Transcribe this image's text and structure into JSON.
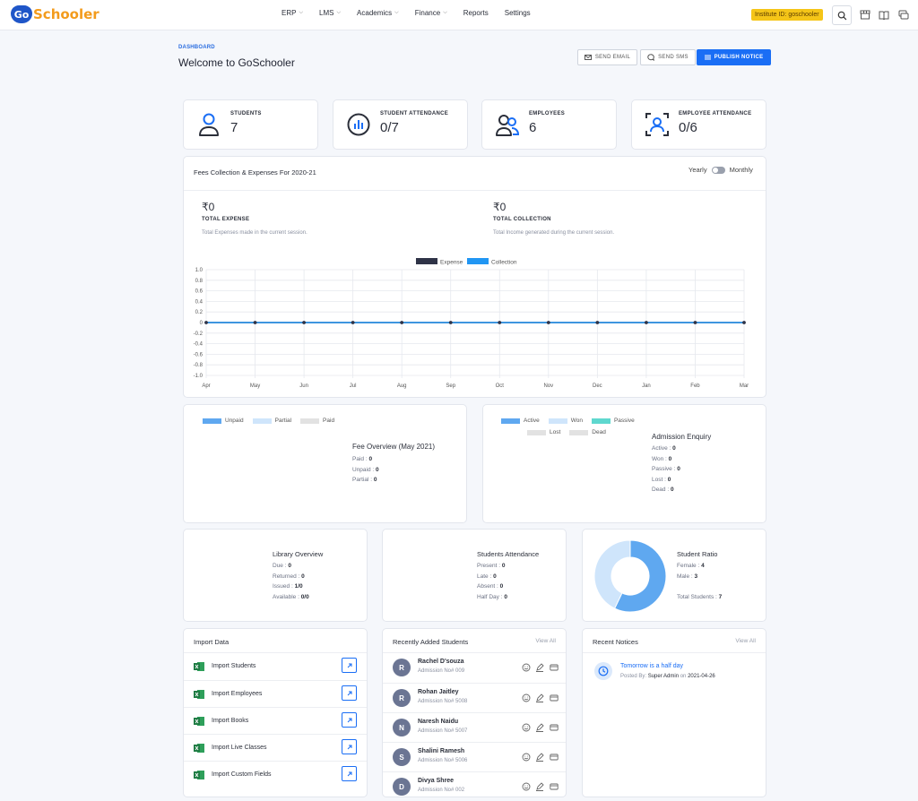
{
  "app": {
    "logo_badge": "Go",
    "logo_text": "Schooler"
  },
  "nav": {
    "items": [
      {
        "label": "ERP",
        "dropdown": true
      },
      {
        "label": "LMS",
        "dropdown": true
      },
      {
        "label": "Academics",
        "dropdown": true
      },
      {
        "label": "Finance",
        "dropdown": true
      },
      {
        "label": "Reports",
        "dropdown": false
      },
      {
        "label": "Settings",
        "dropdown": false
      }
    ]
  },
  "header": {
    "institute_id": "Institute ID: goschooler"
  },
  "page": {
    "breadcrumb": "DASHBOARD",
    "title": "Welcome to GoSchooler",
    "send_email": "SEND EMAIL",
    "send_sms": "SEND SMS",
    "publish_notice": "PUBLISH NOTICE"
  },
  "stats": [
    {
      "label": "STUDENTS",
      "value": "7",
      "icon": "student-icon"
    },
    {
      "label": "STUDENT ATTENDANCE",
      "value": "0/7",
      "icon": "attendance-chart-icon"
    },
    {
      "label": "EMPLOYEES",
      "value": "6",
      "icon": "employees-icon"
    },
    {
      "label": "EMPLOYEE ATTENDANCE",
      "value": "0/6",
      "icon": "face-scan-icon"
    }
  ],
  "fees": {
    "title": "Fees Collection & Expenses For 2020-21",
    "toggle_left": "Yearly",
    "toggle_right": "Monthly",
    "expense_amount": "₹0",
    "expense_label": "TOTAL EXPENSE",
    "expense_desc": "Total Expenses made in the current session.",
    "collection_amount": "₹0",
    "collection_label": "TOTAL COLLECTION",
    "collection_desc": "Total Income generated during the current session."
  },
  "chart_data": {
    "type": "line",
    "categories": [
      "Apr",
      "May",
      "Jun",
      "Jul",
      "Aug",
      "Sep",
      "Oct",
      "Nov",
      "Dec",
      "Jan",
      "Feb",
      "Mar"
    ],
    "series": [
      {
        "name": "Expense",
        "color": "#2f3347",
        "values": [
          0,
          0,
          0,
          0,
          0,
          0,
          0,
          0,
          0,
          0,
          0,
          0
        ]
      },
      {
        "name": "Collection",
        "color": "#2196f3",
        "values": [
          0,
          0,
          0,
          0,
          0,
          0,
          0,
          0,
          0,
          0,
          0,
          0
        ]
      }
    ],
    "ylim": [
      -1.0,
      1.0
    ],
    "yticks": [
      "1.0",
      "0.8",
      "0.6",
      "0.4",
      "0.2",
      "0",
      "-0.2",
      "-0.4",
      "-0.6",
      "-0.8",
      "-1.0"
    ],
    "grid": true,
    "legend": "top-center"
  },
  "fee_overview": {
    "legend": [
      {
        "label": "Unpaid",
        "color": "#5fa8f0"
      },
      {
        "label": "Partial",
        "color": "#cfe5fb"
      },
      {
        "label": "Paid",
        "color": "#e2e2e2"
      }
    ],
    "title": "Fee Overview (May 2021)",
    "rows": [
      {
        "k": "Paid : ",
        "v": "0"
      },
      {
        "k": "Unpaid : ",
        "v": "0"
      },
      {
        "k": "Partial : ",
        "v": "0"
      }
    ]
  },
  "admission": {
    "legend": [
      {
        "label": "Active",
        "color": "#5fa8f0"
      },
      {
        "label": "Won",
        "color": "#cfe5fb"
      },
      {
        "label": "Passive",
        "color": "#5fd8cf"
      },
      {
        "label": "Lost",
        "color": "#e2e2e2"
      },
      {
        "label": "Dead",
        "color": "#e2e2e2"
      }
    ],
    "title": "Admission Enquiry",
    "rows": [
      {
        "k": "Active : ",
        "v": "0"
      },
      {
        "k": "Won : ",
        "v": "0"
      },
      {
        "k": "Passive : ",
        "v": "0"
      },
      {
        "k": "Lost : ",
        "v": "0"
      },
      {
        "k": "Dead : ",
        "v": "0"
      }
    ]
  },
  "library": {
    "title": "Library Overview",
    "rows": [
      {
        "k": "Due : ",
        "v": "0"
      },
      {
        "k": "Returned : ",
        "v": "0"
      },
      {
        "k": "Issued : ",
        "v": "1/0"
      },
      {
        "k": "Available : ",
        "v": "0/0"
      }
    ]
  },
  "students_attendance": {
    "title": "Students Attendance",
    "rows": [
      {
        "k": "Present : ",
        "v": "0"
      },
      {
        "k": "Late : ",
        "v": "0"
      },
      {
        "k": "Absent : ",
        "v": "0"
      },
      {
        "k": "Half Day : ",
        "v": "0"
      }
    ]
  },
  "student_ratio": {
    "title": "Student Ratio",
    "female_k": "Female : ",
    "female_v": "4",
    "male_k": "Male : ",
    "male_v": "3",
    "total_k": "Total Students : ",
    "total_v": "7",
    "female_count": 4,
    "male_count": 3,
    "female_color": "#5fa8f0",
    "male_color": "#cfe5fb"
  },
  "import": {
    "title": "Import Data",
    "items": [
      "Import Students",
      "Import Employees",
      "Import Books",
      "Import Live Classes",
      "Import Custom Fields"
    ]
  },
  "recent_students": {
    "title": "Recently Added Students",
    "view_all": "View All",
    "items": [
      {
        "initial": "R",
        "name": "Rachel D'souza",
        "adm": "Admission No# 009"
      },
      {
        "initial": "R",
        "name": "Rohan Jaitley",
        "adm": "Admission No# 5008"
      },
      {
        "initial": "N",
        "name": "Naresh Naidu",
        "adm": "Admission No# 5007"
      },
      {
        "initial": "S",
        "name": "Shalini Ramesh",
        "adm": "Admission No# 5006"
      },
      {
        "initial": "D",
        "name": "Divya Shree",
        "adm": "Admission No# 002"
      }
    ]
  },
  "notices": {
    "title": "Recent Notices",
    "view_all": "View All",
    "items": [
      {
        "title": "Tomorrow is a half day",
        "posted_prefix": "Posted By: ",
        "author": "Super Admin",
        "on": " on ",
        "date": "2021-04-26"
      }
    ]
  }
}
